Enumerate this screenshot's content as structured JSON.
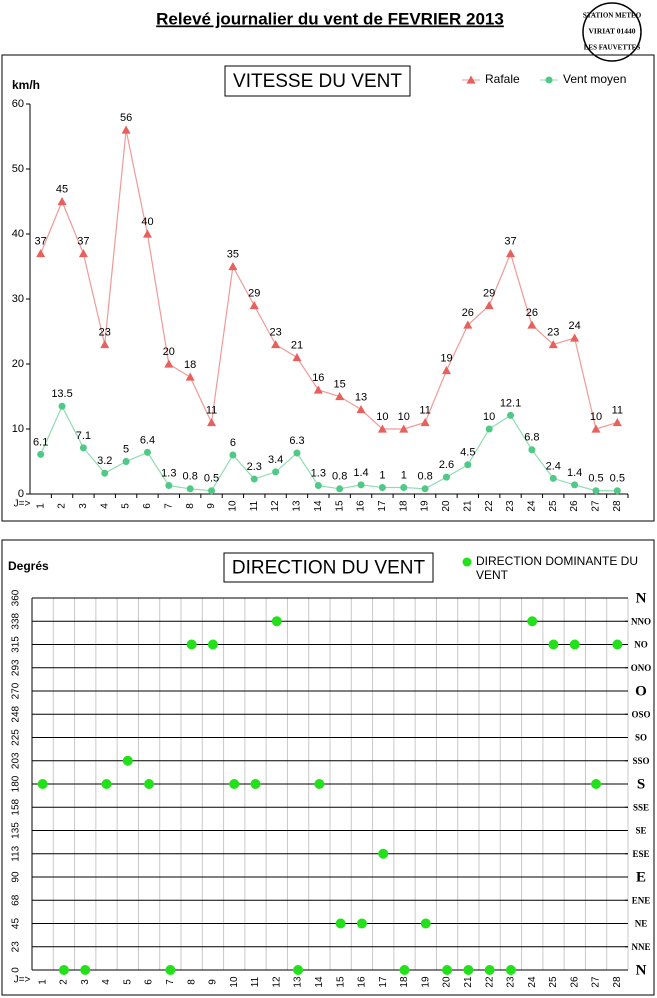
{
  "title": "Relevé journalier du vent de FEVRIER 2013",
  "stamp": [
    "STATION METEO",
    "VIRIAT 01440",
    "LES FAUVETTES"
  ],
  "chart_data": [
    {
      "type": "line",
      "title": "VITESSE DU VENT",
      "y_label": "km/h",
      "x_label": "J=>",
      "categories": [
        "1",
        "2",
        "3",
        "4",
        "5",
        "6",
        "7",
        "8",
        "9",
        "10",
        "11",
        "12",
        "13",
        "14",
        "15",
        "16",
        "17",
        "18",
        "19",
        "20",
        "21",
        "22",
        "23",
        "24",
        "25",
        "26",
        "27",
        "28"
      ],
      "series": [
        {
          "name": "Rafale",
          "color": "#e8605c",
          "line_color": "#f09a98",
          "marker": "triangle",
          "values": [
            37,
            45,
            37,
            23,
            56,
            40,
            20,
            18,
            11,
            35,
            29,
            23,
            21,
            16,
            15,
            13,
            10,
            10,
            11,
            19,
            26,
            29,
            37,
            26,
            23,
            24,
            10,
            11
          ]
        },
        {
          "name": "Vent moyen",
          "color": "#4ec986",
          "line_color": "#8edcb0",
          "marker": "circle",
          "values": [
            6.1,
            13.5,
            7.1,
            3.2,
            5,
            6.4,
            1.3,
            0.8,
            0.5,
            6,
            2.3,
            3.4,
            6.3,
            1.3,
            0.8,
            1.4,
            1,
            1,
            0.8,
            2.6,
            4.5,
            10,
            12.1,
            6.8,
            2.4,
            1.4,
            0.5,
            0.5
          ]
        }
      ],
      "ylim": [
        0,
        60
      ],
      "yticks": [
        0,
        10,
        20,
        30,
        40,
        50,
        60
      ],
      "grid": false,
      "legend": "top-right"
    },
    {
      "type": "scatter",
      "title": "DIRECTION DU VENT",
      "y_label": "Degrés",
      "x_label": "J=>",
      "categories": [
        "1",
        "2",
        "3",
        "4",
        "5",
        "6",
        "7",
        "8",
        "9",
        "10",
        "11",
        "12",
        "13",
        "14",
        "15",
        "16",
        "17",
        "18",
        "19",
        "20",
        "21",
        "22",
        "23",
        "24",
        "25",
        "26",
        "27",
        "28"
      ],
      "series": [
        {
          "name": "DIRECTION DOMINANTE DU VENT",
          "color": "#22e01a",
          "marker": "circle",
          "values": [
            180,
            0,
            0,
            180,
            202.5,
            180,
            0,
            315,
            315,
            180,
            180,
            337.5,
            0,
            180,
            45,
            45,
            112.5,
            0,
            45,
            0,
            0,
            0,
            0,
            337.5,
            315,
            315,
            180,
            315
          ]
        }
      ],
      "ylim": [
        0,
        360
      ],
      "yticks": [
        0,
        {
          "value": 22.5,
          "label": "23"
        },
        45,
        {
          "value": 67.5,
          "label": "68"
        },
        90,
        {
          "value": 112.5,
          "label": "113"
        },
        135,
        {
          "value": 157.5,
          "label": "158"
        },
        180,
        {
          "value": 202.5,
          "label": "203"
        },
        225,
        {
          "value": 247.5,
          "label": "248"
        },
        270,
        {
          "value": 292.5,
          "label": "293"
        },
        315,
        {
          "value": 337.5,
          "label": "338"
        },
        360
      ],
      "y2lim": [
        0,
        360
      ],
      "y2ticks": [
        {
          "value": 0,
          "label": "N"
        },
        {
          "value": 22.5,
          "label": "NNE"
        },
        {
          "value": 45,
          "label": "NE"
        },
        {
          "value": 67.5,
          "label": "ENE"
        },
        {
          "value": 90,
          "label": "E"
        },
        {
          "value": 112.5,
          "label": "ESE"
        },
        {
          "value": 135,
          "label": "SE"
        },
        {
          "value": 157.5,
          "label": "SSE"
        },
        {
          "value": 180,
          "label": "S"
        },
        {
          "value": 202.5,
          "label": "SSO"
        },
        {
          "value": 225,
          "label": "SO"
        },
        {
          "value": 247.5,
          "label": "OSO"
        },
        {
          "value": 270,
          "label": "O"
        },
        {
          "value": 292.5,
          "label": "ONO"
        },
        {
          "value": 315,
          "label": "NO"
        },
        {
          "value": 337.5,
          "label": "NNO"
        },
        {
          "value": 360,
          "label": "N"
        }
      ],
      "grid": true,
      "legend": "top-right"
    }
  ]
}
